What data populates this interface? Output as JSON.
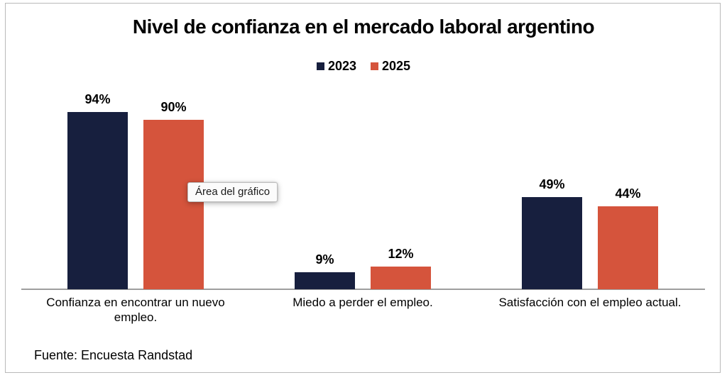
{
  "page": {
    "tooltip": "Área del gráfico",
    "source": "Fuente: Encuesta Randstad"
  },
  "chart_data": {
    "type": "bar",
    "title": "Nivel de confianza en el mercado laboral argentino",
    "categories": [
      "Confianza en encontrar un nuevo empleo.",
      "Miedo a perder el empleo.",
      "Satisfacción con el empleo actual."
    ],
    "series": [
      {
        "name": "2023",
        "color": "#171f3e",
        "values": [
          94,
          9,
          49
        ]
      },
      {
        "name": "2025",
        "color": "#d5543c",
        "values": [
          90,
          12,
          44
        ]
      }
    ],
    "value_suffix": "%",
    "ylim": [
      0,
      100
    ],
    "grid": false,
    "data_labels": true,
    "legend_position": "top-center",
    "axis_line_color": "#9e9e9e"
  }
}
